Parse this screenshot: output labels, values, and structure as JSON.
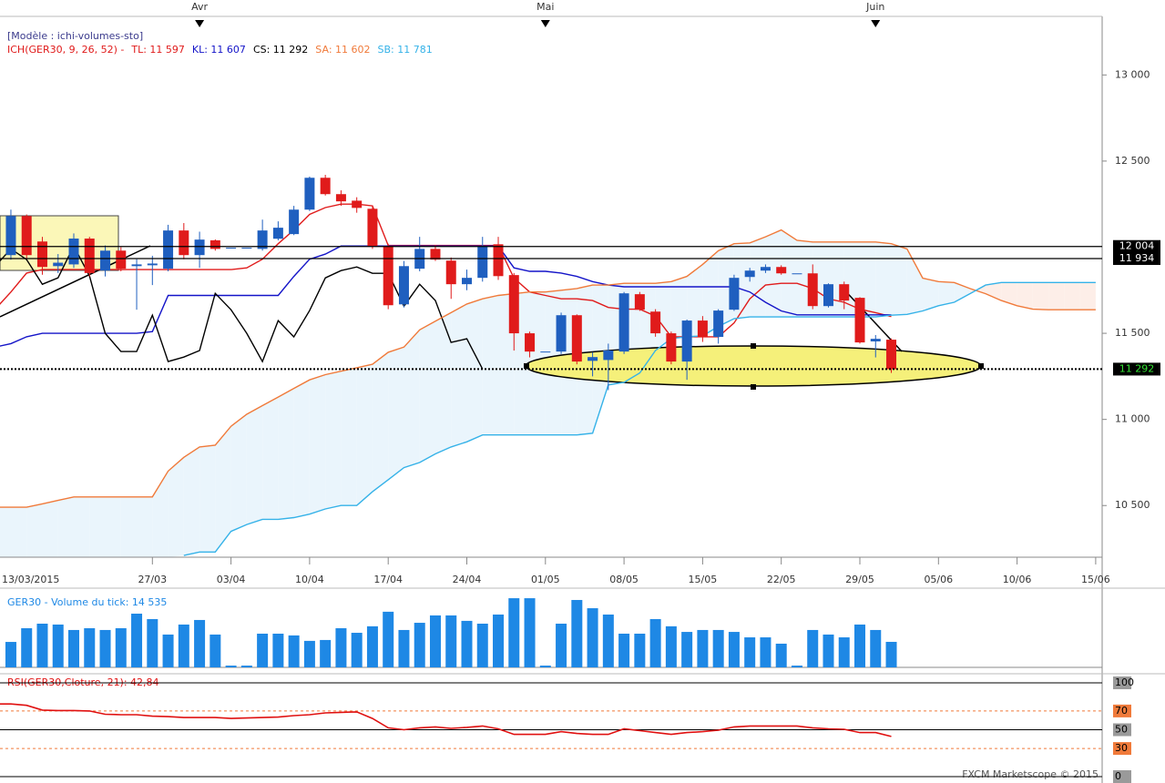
{
  "chart_data": [
    {
      "type": "candlestick",
      "model": "[Modèle : ichi-volumes-sto]",
      "indicator": "ICH(GER30, 9, 26, 52) -",
      "categories": [
        "13/03/2015",
        null,
        null,
        null,
        null,
        null,
        null,
        null,
        null,
        null,
        "27/03",
        null,
        null,
        null,
        null,
        "03/04",
        null,
        null,
        null,
        null,
        "10/04",
        null,
        null,
        null,
        null,
        "17/04",
        null,
        null,
        null,
        null,
        "24/04",
        null,
        null,
        null,
        null,
        "01/05",
        null,
        null,
        null,
        null,
        "08/05",
        null,
        null,
        null,
        null,
        "15/05",
        null,
        null,
        null,
        null,
        "22/05",
        null,
        null,
        null,
        null,
        "29/05",
        null,
        null,
        null,
        null,
        "05/06",
        null,
        null,
        null,
        null,
        "10/06",
        null,
        null,
        null,
        null,
        "15/06"
      ],
      "x2_categories": [
        null,
        null,
        null,
        null,
        null,
        null,
        null,
        null,
        null,
        null,
        null,
        null,
        null,
        "Avr",
        null,
        null,
        null,
        null,
        null,
        null,
        null,
        null,
        null,
        null,
        null,
        null,
        null,
        null,
        null,
        null,
        null,
        null,
        null,
        null,
        null,
        "Mai",
        null,
        null,
        null,
        null,
        null,
        null,
        null,
        null,
        null,
        null,
        null,
        null,
        null,
        null,
        null,
        null,
        null,
        null,
        null,
        null,
        "Juin",
        null,
        null,
        null,
        null,
        null,
        null,
        null,
        null,
        null,
        null,
        null,
        null,
        null,
        null
      ],
      "open": [
        null,
        11954,
        12181,
        12033,
        11890,
        11900,
        12050,
        11865,
        11980,
        11890,
        11895,
        11875,
        12097,
        11954,
        12040,
        11997,
        11997,
        11990,
        12049,
        12076,
        12218,
        12403,
        12308,
        12270,
        12223,
        12007,
        11668,
        11875,
        11990,
        11922,
        11785,
        11822,
        12017,
        11838,
        11500,
        11394,
        11394,
        11605,
        11340,
        11345,
        11394,
        11727,
        11626,
        11500,
        11336,
        11574,
        11479,
        11637,
        11827,
        11864,
        11885,
        11848,
        11848,
        11658,
        11785,
        11706,
        11453,
        11463,
        null,
        null,
        null,
        null,
        null,
        null,
        null,
        null,
        null,
        null,
        null,
        null,
        null
      ],
      "high": [
        null,
        12218,
        12190,
        12060,
        11960,
        12080,
        12060,
        12010,
        12000,
        11930,
        11950,
        12130,
        12140,
        12090,
        12045,
        11997,
        11997,
        12160,
        12150,
        12240,
        12410,
        12420,
        12330,
        12290,
        12240,
        12020,
        11920,
        12060,
        12010,
        11940,
        11870,
        12060,
        12060,
        11850,
        11510,
        11394,
        11620,
        11610,
        11390,
        11440,
        11740,
        11740,
        11640,
        11510,
        11580,
        11600,
        11640,
        11840,
        11880,
        11900,
        11895,
        11848,
        11900,
        11790,
        11800,
        11710,
        11490,
        11470,
        null,
        null,
        null,
        null,
        null,
        null,
        null,
        null,
        null,
        null,
        null,
        null,
        null
      ],
      "low": [
        null,
        11927,
        11930,
        11840,
        11850,
        11880,
        11830,
        11830,
        11860,
        11637,
        11780,
        11860,
        11930,
        11880,
        11980,
        11997,
        11997,
        11980,
        12040,
        12070,
        12210,
        12300,
        12240,
        12200,
        11990,
        11640,
        11650,
        11860,
        11920,
        11700,
        11750,
        11800,
        11810,
        11400,
        11360,
        11394,
        11380,
        11320,
        11250,
        11170,
        11380,
        11630,
        11480,
        11320,
        11230,
        11450,
        11440,
        11630,
        11800,
        11850,
        11840,
        11848,
        11640,
        11650,
        11640,
        11440,
        11360,
        11270,
        null,
        null,
        null,
        null,
        null,
        null,
        null,
        null,
        null,
        null,
        null,
        null,
        null
      ],
      "close": [
        null,
        12181,
        11954,
        11885,
        11910,
        12050,
        11850,
        11980,
        11875,
        11900,
        11905,
        12097,
        11954,
        12044,
        11990,
        11997,
        11997,
        12097,
        12113,
        12218,
        12403,
        12308,
        12266,
        12228,
        12007,
        11663,
        11890,
        11990,
        11928,
        11785,
        11822,
        12007,
        11832,
        11500,
        11394,
        11394,
        11605,
        11336,
        11362,
        11400,
        11732,
        11637,
        11500,
        11336,
        11574,
        11479,
        11632,
        11822,
        11864,
        11885,
        11848,
        11848,
        11658,
        11785,
        11690,
        11447,
        11468,
        11292,
        null,
        null,
        null,
        null,
        null,
        null,
        null,
        null,
        null,
        null,
        null,
        null,
        null
      ],
      "up_color": "#1f5fbf",
      "down_color": "#e01b1b",
      "series": [
        {
          "name": "TL: 11 597",
          "color": "#e01b1b",
          "values": [
            11640,
            11740,
            11850,
            11870,
            11870,
            11870,
            11870,
            11870,
            11870,
            11870,
            11870,
            11870,
            11870,
            11870,
            11870,
            11870,
            11880,
            11930,
            12020,
            12100,
            12190,
            12230,
            12250,
            12250,
            12240,
            12010,
            12010,
            12010,
            12010,
            12010,
            12010,
            12010,
            12010,
            11820,
            11740,
            11720,
            11700,
            11700,
            11690,
            11650,
            11640,
            11640,
            11600,
            11480,
            11480,
            11480,
            11480,
            11560,
            11700,
            11780,
            11790,
            11790,
            11760,
            11700,
            11680,
            11640,
            11620,
            11597,
            null,
            null,
            null,
            null,
            null,
            null,
            null,
            null,
            null,
            null,
            null,
            null,
            null
          ]
        },
        {
          "name": "KL: 11 607",
          "color": "#1414c8",
          "values": [
            11420,
            11440,
            11480,
            11500,
            11500,
            11500,
            11500,
            11500,
            11500,
            11500,
            11510,
            11720,
            11720,
            11720,
            11720,
            11720,
            11720,
            11720,
            11720,
            11830,
            11930,
            11960,
            12007,
            12007,
            12007,
            12007,
            12007,
            12007,
            12007,
            12007,
            12007,
            12007,
            12007,
            11880,
            11860,
            11860,
            11850,
            11830,
            11800,
            11780,
            11770,
            11770,
            11770,
            11770,
            11770,
            11770,
            11770,
            11770,
            11740,
            11680,
            11630,
            11607,
            11607,
            11607,
            11607,
            11607,
            11607,
            11607,
            null,
            null,
            null,
            null,
            null,
            null,
            null,
            null,
            null,
            null,
            null,
            null,
            null
          ]
        },
        {
          "name": "CS: 11 292",
          "color": "#000000",
          "values": [
            11890,
            11990,
            11928,
            11785,
            11822,
            12007,
            11832,
            11500,
            11394,
            11394,
            11605,
            11336,
            11362,
            11400,
            11732,
            11637,
            11500,
            11336,
            11574,
            11479,
            11632,
            11822,
            11864,
            11885,
            11848,
            11848,
            11658,
            11785,
            11690,
            11447,
            11468,
            11292,
            null,
            null,
            null,
            null,
            null,
            null,
            null,
            null,
            null,
            null,
            null,
            null,
            null,
            null,
            null,
            null,
            null,
            null,
            null,
            null,
            null,
            null,
            null,
            null,
            null,
            null,
            null,
            null,
            null,
            null,
            null,
            null,
            null,
            null,
            null,
            null,
            null,
            null,
            null
          ]
        },
        {
          "name": "SA: 11 602",
          "color": "#f07a3a",
          "values": [
            10490,
            10490,
            10490,
            10510,
            10530,
            10550,
            10550,
            10550,
            10550,
            10550,
            10550,
            10700,
            10780,
            10840,
            10850,
            10960,
            11030,
            11080,
            11130,
            11180,
            11230,
            11260,
            11280,
            11300,
            11320,
            11390,
            11420,
            11520,
            11570,
            11620,
            11670,
            11700,
            11720,
            11730,
            11740,
            11740,
            11750,
            11760,
            11780,
            11780,
            11790,
            11790,
            11790,
            11800,
            11830,
            11900,
            11980,
            12020,
            12025,
            12060,
            12100,
            12040,
            12030,
            12030,
            12030,
            12030,
            12030,
            12020,
            11990,
            11820,
            11800,
            11795,
            11760,
            11730,
            11690,
            11660,
            11640,
            11637,
            11637,
            11637,
            11637
          ]
        },
        {
          "name": "SB: 11 781",
          "color": "#35b2e8",
          "values": [
            null,
            null,
            null,
            null,
            null,
            null,
            null,
            null,
            null,
            null,
            null,
            null,
            10210,
            10230,
            10230,
            10350,
            10390,
            10420,
            10420,
            10430,
            10450,
            10480,
            10500,
            10500,
            10580,
            10650,
            10720,
            10750,
            10800,
            10840,
            10870,
            10910,
            10910,
            10910,
            10910,
            10910,
            10910,
            10910,
            10920,
            11200,
            11215,
            11270,
            11400,
            11470,
            11480,
            11485,
            11540,
            11585,
            11595,
            11595,
            11595,
            11595,
            11595,
            11595,
            11595,
            11595,
            11595,
            11605,
            11610,
            11630,
            11660,
            11680,
            11730,
            11780,
            11795,
            11795,
            11795,
            11795,
            11795,
            11795,
            11795
          ]
        }
      ],
      "cloud_colors": [
        "#eaf5fc",
        "#fdeee8"
      ],
      "ylim": [
        10200,
        13340
      ],
      "yticks": [
        {
          "value": 10500,
          "label": "10 500"
        },
        {
          "value": 11000,
          "label": "11 000"
        },
        {
          "value": 11500,
          "label": "11 500"
        },
        {
          "value": 12500,
          "label": "12 500"
        },
        {
          "value": 13000,
          "label": "13 000"
        }
      ],
      "levels": [
        {
          "value": 12004,
          "label": "12 004",
          "color": "#ffffff"
        },
        {
          "value": 11934,
          "label": "11 934",
          "color": "#ffffff"
        },
        {
          "value": 11292,
          "label": "11 292",
          "color": "#33e033",
          "dashed": true
        }
      ]
    },
    {
      "type": "bar",
      "title": "GER30 - Volume du tick: 14 535",
      "color": "#1e88e5",
      "values": [
        null,
        14500,
        22300,
        24900,
        24400,
        21300,
        22300,
        21300,
        22300,
        30600,
        27500,
        18700,
        24400,
        27000,
        18700,
        1000,
        1000,
        19200,
        19200,
        18200,
        15100,
        15600,
        22300,
        19700,
        23400,
        31700,
        21300,
        25400,
        29600,
        29600,
        26500,
        24900,
        30100,
        39400,
        39400,
        1000,
        24900,
        38400,
        33700,
        30100,
        19200,
        19200,
        27500,
        23400,
        20200,
        21300,
        21300,
        20200,
        17100,
        17100,
        13500,
        1000,
        21300,
        18700,
        17100,
        24400,
        21300,
        14535,
        null,
        null,
        null,
        null,
        null,
        null,
        null,
        null,
        null,
        null,
        null,
        null,
        null
      ],
      "ylim": [
        0,
        41500
      ]
    },
    {
      "type": "line",
      "title": "RSI(GER30,Cloture, 21): 42,84",
      "color": "#e01010",
      "values": [
        77.5,
        77.5,
        76,
        71,
        70.5,
        70.5,
        70,
        66.5,
        66,
        66,
        64.5,
        64,
        63,
        63,
        63,
        62,
        62.5,
        63,
        63.5,
        65,
        66,
        68,
        68.5,
        69,
        62,
        52,
        50,
        52,
        53,
        51.5,
        52.5,
        54,
        51,
        45,
        45,
        45,
        48,
        46,
        45,
        45,
        51,
        49,
        47,
        45,
        47,
        48,
        49.5,
        53,
        54,
        54,
        54,
        54,
        52,
        51,
        50.5,
        47,
        47,
        42.84,
        null,
        null,
        null,
        null,
        null,
        null,
        null,
        null,
        null,
        null,
        null,
        null,
        null
      ],
      "ylim": [
        0,
        100
      ],
      "yticks": [
        0,
        30,
        50,
        70,
        100
      ],
      "tick_colors": [
        "#000000",
        "#f07a3a",
        "#000000",
        "#f07a3a",
        "#000000"
      ],
      "tick_dashed": [
        false,
        true,
        false,
        true,
        false
      ]
    }
  ],
  "footer": "FXCM Marketscope © 2015"
}
